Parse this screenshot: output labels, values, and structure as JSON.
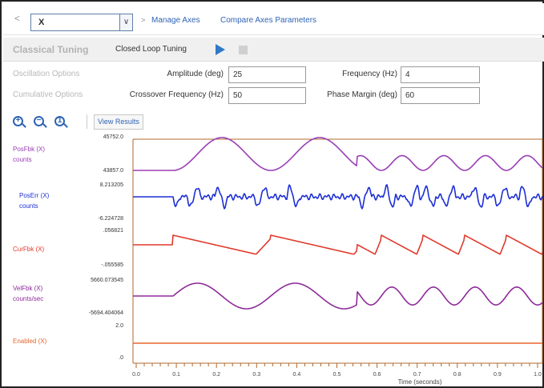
{
  "nav": {
    "back": "<",
    "axis_value": "X",
    "dropdown_glyph": "∨",
    "crumb_separator": ">",
    "breadcrumbs": [
      "Manage Axes",
      "Compare Axes Parameters"
    ]
  },
  "tuning": {
    "title": "Classical Tuning",
    "mode": "Closed Loop Tuning"
  },
  "oscillation": {
    "category": "Oscillation Options",
    "amplitude_label": "Amplitude (deg)",
    "amplitude_value": "25",
    "frequency_label": "Frequency (Hz)",
    "frequency_value": "4"
  },
  "cumulative": {
    "category": "Cumulative Options",
    "crossover_label": "Crossover Frequency (Hz)",
    "crossover_value": "50",
    "phase_label": "Phase Margin (deg)",
    "phase_value": "60"
  },
  "zoom": {
    "zoom_in": "+",
    "zoom_out": "−",
    "zoom_reset": "1",
    "view_results": "View Results"
  },
  "plot": {
    "traces": [
      {
        "name": "PosFbk (X)",
        "unit": "counts",
        "color": "#9a3fb5",
        "top": "45752.0",
        "bottom": "43857.0"
      },
      {
        "name": "PosErr (X)",
        "unit": "counts",
        "color": "#1d2fd6",
        "top": "8.213205",
        "bottom": "-6.224728"
      },
      {
        "name": "CurFbk (X)",
        "unit": "",
        "color": "#e03a2c",
        "top": ".056821",
        "bottom": "-.055585"
      },
      {
        "name": "VelFbk (X)",
        "unit": "counts/sec",
        "color": "#8e2a9a",
        "top": "5660.073545",
        "bottom": "-5694.404064"
      },
      {
        "name": "Enabled (X)",
        "unit": "",
        "color": "#e8662c",
        "top": "2.0",
        "bottom": ".0"
      }
    ],
    "x_ticks": [
      "0.0",
      "0.1",
      "0.2",
      "0.3",
      "0.4",
      "0.5",
      "0.6",
      "0.7",
      "0.8",
      "0.9",
      "1.0"
    ],
    "x_label": "Time (seconds)",
    "colors": {
      "axis": "#b06a2e",
      "accent": "#2f63b5"
    }
  }
}
